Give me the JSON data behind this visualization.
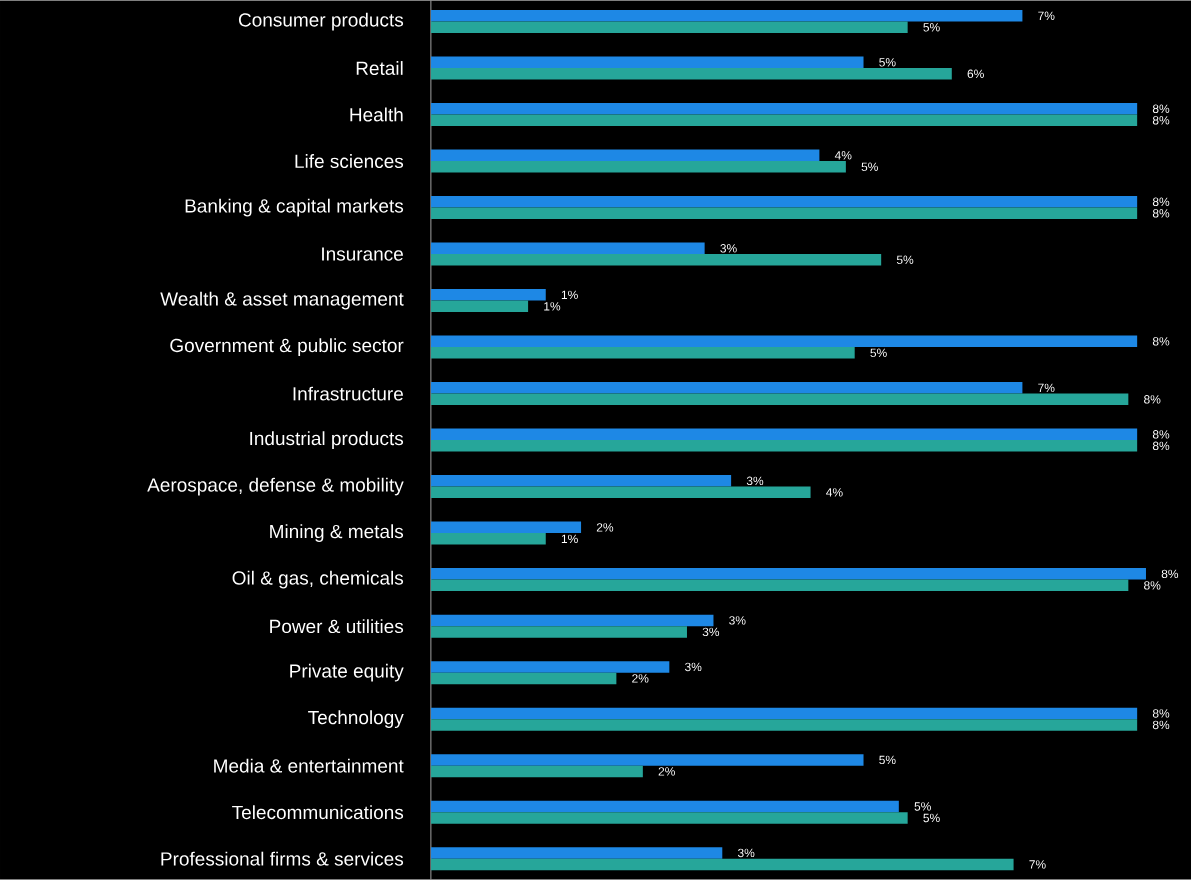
{
  "chart_data": {
    "type": "bar",
    "orientation": "horizontal",
    "tick_labels": "y",
    "categories": [
      "Consumer products",
      "Retail",
      "Health",
      "Life sciences",
      "Banking & capital markets",
      "Insurance",
      "Wealth & asset management",
      "Government & public sector",
      "Infrastructure",
      "Industrial products",
      "Aerospace, defense & mobility",
      "Mining & metals",
      "Oil & gas, chemicals",
      "Power & utilities",
      "Private equity",
      "Technology",
      "Media & entertainment",
      "Telecommunications",
      "Professional firms & services"
    ],
    "series": [
      {
        "color": "#1e88e5",
        "values": [
          6.7,
          4.9,
          8.0,
          4.4,
          8.0,
          3.1,
          1.3,
          8.0,
          6.7,
          8.0,
          3.4,
          1.7,
          8.1,
          3.2,
          2.7,
          8.0,
          4.9,
          5.3,
          3.3
        ],
        "value_labels": [
          "7%",
          "5%",
          "8%",
          "4%",
          "8%",
          "3%",
          "1%",
          "8%",
          "7%",
          "8%",
          "3%",
          "2%",
          "8%",
          "3%",
          "3%",
          "8%",
          "5%",
          "5%",
          "3%"
        ]
      },
      {
        "color": "#26a69a",
        "values": [
          5.4,
          5.9,
          8.0,
          4.7,
          8.0,
          5.1,
          1.1,
          4.8,
          7.9,
          8.0,
          4.3,
          1.3,
          7.9,
          2.9,
          2.1,
          8.0,
          2.4,
          5.4,
          6.6
        ],
        "value_labels": [
          "5%",
          "6%",
          "8%",
          "5%",
          "8%",
          "5%",
          "1%",
          "5%",
          "8%",
          "8%",
          "4%",
          "1%",
          "8%",
          "3%",
          "2%",
          "8%",
          "2%",
          "5%",
          "7%"
        ]
      }
    ]
  }
}
